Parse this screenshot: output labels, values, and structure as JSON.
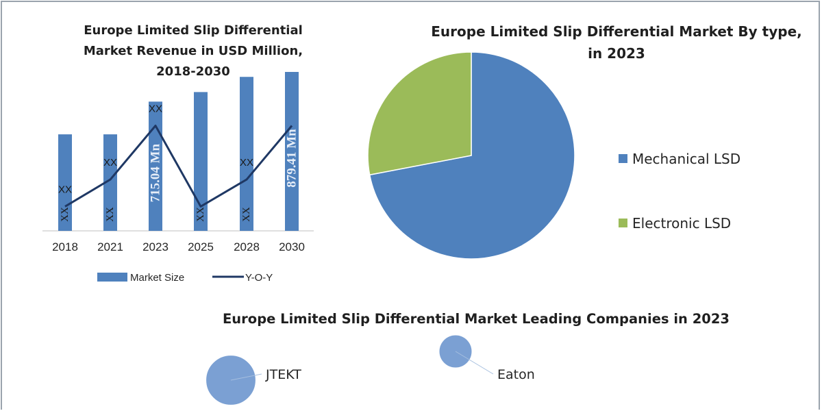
{
  "colors": {
    "bar": "#4f81bd",
    "line": "#1f3864",
    "pie_mechanical": "#4f81bd",
    "pie_electronic": "#9bbb59",
    "bubble": "#7ba0d3"
  },
  "chart_data": [
    {
      "type": "bar",
      "title": "Europe Limited Slip Differential Market Revenue in USD Million, 2018-2030",
      "title_lines": [
        "Europe Limited Slip Differential",
        "Market Revenue in USD Million,",
        "2018-2030"
      ],
      "categories": [
        "2018",
        "2021",
        "2023",
        "2025",
        "2028",
        "2030"
      ],
      "series": [
        {
          "name": "Market Size",
          "kind": "bar",
          "values": [
            534,
            534,
            715.04,
            768,
            852,
            879.41
          ],
          "labels": [
            "XX",
            "XX",
            "715.04 Mn",
            "XX",
            "XX",
            "879.41 Mn"
          ]
        },
        {
          "name": "Y-O-Y",
          "kind": "line",
          "values": [
            0.3,
            0.45,
            0.75,
            0.3,
            0.45,
            0.75
          ],
          "labels": [
            "XX",
            "XX",
            "XX",
            "",
            "XX",
            ""
          ]
        }
      ],
      "legend": "bottom",
      "grid": false
    },
    {
      "type": "pie",
      "title": "Europe Limited Slip Differential Market By type, in 2023",
      "title_lines": [
        "Europe Limited Slip Differential Market By type,",
        "in 2023"
      ],
      "categories": [
        "Mechanical LSD",
        "Electronic LSD"
      ],
      "values": [
        72,
        28
      ],
      "legend": "right"
    },
    {
      "type": "scatter",
      "title": "Europe Limited Slip Differential Market Leading Companies in 2023",
      "points": [
        {
          "label": "JTEKT",
          "size": 2.3
        },
        {
          "label": "Eaton",
          "size": 1.0
        }
      ]
    }
  ]
}
